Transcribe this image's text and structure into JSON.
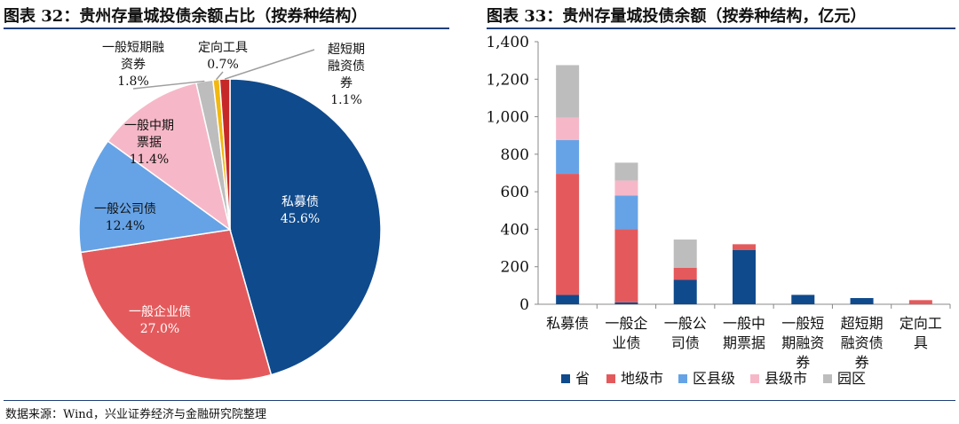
{
  "source_note": "数据来源：Wind，兴业证券经济与金融研究院整理",
  "chart_data": [
    {
      "type": "pie",
      "title": "图表 32：贵州存量城投债余额占比（按券种结构）",
      "slices": [
        {
          "lines": [
            "私募债"
          ],
          "value": 45.6,
          "value_label": "45.6%",
          "color": "#0f4a8c"
        },
        {
          "lines": [
            "一般企业债"
          ],
          "value": 27.0,
          "value_label": "27.0%",
          "color": "#e45a5c"
        },
        {
          "lines": [
            "一般公司债"
          ],
          "value": 12.4,
          "value_label": "12.4%",
          "color": "#66a3e6"
        },
        {
          "lines": [
            "一般中期",
            "票据"
          ],
          "value": 11.4,
          "value_label": "11.4%",
          "color": "#f6b8c8"
        },
        {
          "lines": [
            "一般短期融",
            "资券"
          ],
          "value": 1.8,
          "value_label": "1.8%",
          "color": "#bdbdbd"
        },
        {
          "lines": [
            "定向工具"
          ],
          "value": 0.7,
          "value_label": "0.7%",
          "color": "#f2b80f"
        },
        {
          "lines": [
            "超短期",
            "融资债",
            "券"
          ],
          "value": 1.1,
          "value_label": "1.1%",
          "color": "#c62828"
        }
      ]
    },
    {
      "type": "bar",
      "stacked": true,
      "title": "图表 33：贵州存量城投债余额（按券种结构，亿元）",
      "categories": [
        [
          "私募债"
        ],
        [
          "一般企",
          "业债"
        ],
        [
          "一般公",
          "司债"
        ],
        [
          "一般中",
          "期票据"
        ],
        [
          "一般短",
          "期融资",
          "券"
        ],
        [
          "超短期",
          "融资债",
          "券"
        ],
        [
          "定向工",
          "具"
        ]
      ],
      "series": [
        {
          "name": "省",
          "color": "#0f4a8c",
          "values": [
            50,
            10,
            130,
            290,
            50,
            33,
            0
          ]
        },
        {
          "name": "地级市",
          "color": "#e45a5c",
          "values": [
            645,
            390,
            65,
            30,
            0,
            0,
            22
          ]
        },
        {
          "name": "区县级",
          "color": "#66a3e6",
          "values": [
            180,
            180,
            0,
            0,
            0,
            0,
            0
          ]
        },
        {
          "name": "县级市",
          "color": "#f6b8c8",
          "values": [
            120,
            80,
            0,
            0,
            0,
            0,
            0
          ]
        },
        {
          "name": "园区",
          "color": "#bdbdbd",
          "values": [
            280,
            95,
            150,
            0,
            0,
            0,
            0
          ]
        }
      ],
      "ylim": [
        0,
        1400
      ],
      "yticks": [
        0,
        200,
        400,
        600,
        800,
        1000,
        1200,
        1400
      ],
      "ytick_labels": [
        "0",
        "200",
        "400",
        "600",
        "800",
        "1,000",
        "1,200",
        "1,400"
      ],
      "legend_position": "bottom"
    }
  ]
}
